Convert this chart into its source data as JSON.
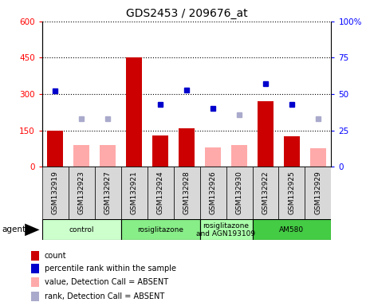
{
  "title": "GDS2453 / 209676_at",
  "samples": [
    "GSM132919",
    "GSM132923",
    "GSM132927",
    "GSM132921",
    "GSM132924",
    "GSM132928",
    "GSM132926",
    "GSM132930",
    "GSM132922",
    "GSM132925",
    "GSM132929"
  ],
  "bar_values": [
    150,
    null,
    null,
    450,
    130,
    160,
    null,
    null,
    270,
    125,
    null
  ],
  "bar_absent_values": [
    null,
    90,
    90,
    null,
    null,
    null,
    80,
    90,
    null,
    null,
    75
  ],
  "percentile_present_pct": [
    52,
    null,
    null,
    null,
    43,
    53,
    40,
    null,
    57,
    43,
    null
  ],
  "percentile_absent_pct": [
    null,
    33,
    33,
    null,
    null,
    null,
    null,
    36,
    null,
    null,
    33
  ],
  "bar_color_present": "#cc0000",
  "bar_color_absent": "#ffaaaa",
  "dot_color_present": "#0000cc",
  "dot_color_absent": "#aaaacc",
  "ylim_left": [
    0,
    600
  ],
  "ylim_right": [
    0,
    100
  ],
  "yticks_left": [
    0,
    150,
    300,
    450,
    600
  ],
  "yticks_right": [
    0,
    25,
    50,
    75,
    100
  ],
  "groups": [
    {
      "label": "control",
      "start": 0,
      "end": 3,
      "color": "#ccffcc"
    },
    {
      "label": "rosiglitazone",
      "start": 3,
      "end": 6,
      "color": "#88ee88"
    },
    {
      "label": "rosiglitazone\nand AGN193109",
      "start": 6,
      "end": 8,
      "color": "#aaffaa"
    },
    {
      "label": "AM580",
      "start": 8,
      "end": 11,
      "color": "#44cc44"
    }
  ],
  "legend_items": [
    {
      "label": "count",
      "color": "#cc0000"
    },
    {
      "label": "percentile rank within the sample",
      "color": "#0000cc"
    },
    {
      "label": "value, Detection Call = ABSENT",
      "color": "#ffaaaa"
    },
    {
      "label": "rank, Detection Call = ABSENT",
      "color": "#aaaacc"
    }
  ],
  "agent_label": "agent",
  "bar_width": 0.6
}
